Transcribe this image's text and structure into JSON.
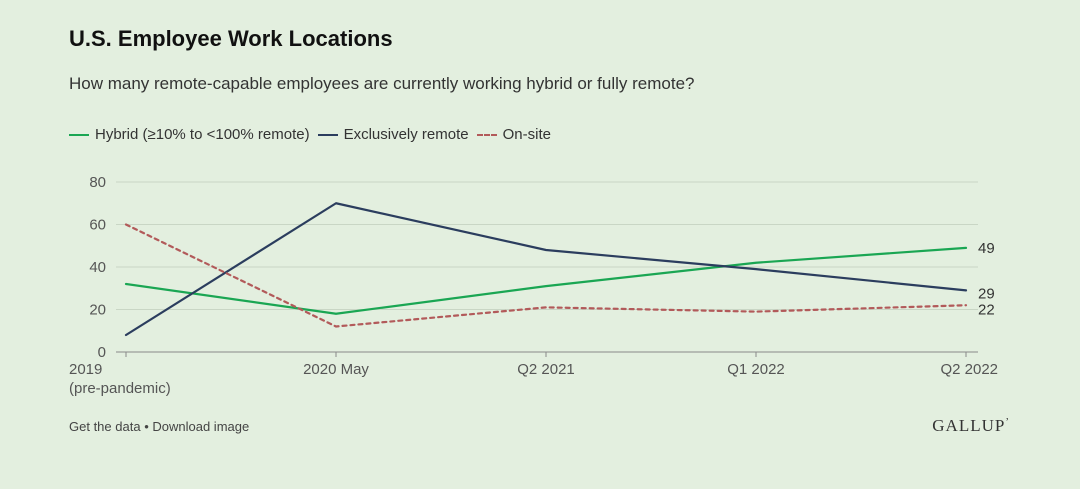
{
  "header": {
    "title": "U.S. Employee Work Locations",
    "subtitle": "How many remote-capable employees are currently working hybrid or fully remote?"
  },
  "legend": [
    {
      "label": "Hybrid (≥10% to <100% remote)",
      "color": "#1aa653",
      "dash": "solid"
    },
    {
      "label": "Exclusively remote",
      "color": "#2b3d5e",
      "dash": "solid"
    },
    {
      "label": "On-site",
      "color": "#b25a5a",
      "dash": "dashed"
    }
  ],
  "footer": {
    "get_data": "Get the data",
    "separator": "•",
    "download": "Download image",
    "brand": "GALLUP",
    "brand_mark": "’"
  },
  "chart_data": {
    "type": "line",
    "categories": [
      "2019",
      "2020 May",
      "Q2 2021",
      "Q1 2022",
      "Q2 2022"
    ],
    "category_sublabels": [
      "(pre-pandemic)",
      "",
      "",
      "",
      ""
    ],
    "ylim": [
      0,
      80
    ],
    "yticks": [
      0,
      20,
      40,
      60,
      80
    ],
    "grid": true,
    "legend_position": "top-left",
    "series": [
      {
        "name": "Hybrid (≥10% to <100% remote)",
        "color": "#1aa653",
        "dash": "solid",
        "values": [
          32,
          18,
          31,
          42,
          49
        ],
        "end_label": "49"
      },
      {
        "name": "Exclusively remote",
        "color": "#2b3d5e",
        "dash": "solid",
        "values": [
          8,
          70,
          48,
          39,
          29
        ],
        "end_label": "29"
      },
      {
        "name": "On-site",
        "color": "#b25a5a",
        "dash": "dashed",
        "values": [
          60,
          12,
          21,
          19,
          22
        ],
        "end_label": "22"
      }
    ]
  }
}
